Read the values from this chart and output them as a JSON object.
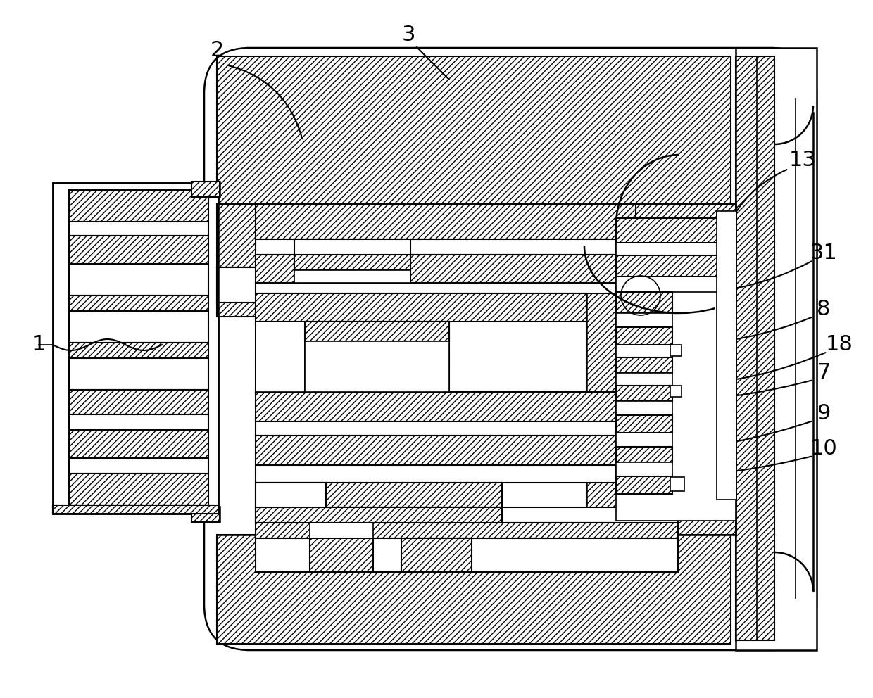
{
  "bg_color": "#ffffff",
  "lc": "#000000",
  "lw": 1.8,
  "lw_thin": 1.2,
  "fig_w": 12.4,
  "fig_h": 9.92,
  "fs": 22
}
